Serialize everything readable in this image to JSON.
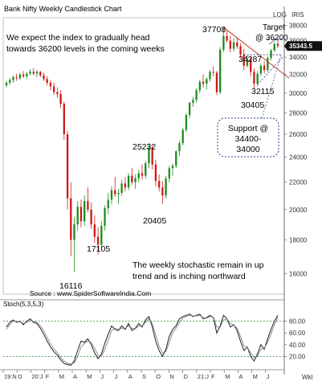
{
  "chart_data": [
    {
      "type": "candlestick",
      "title": "Bank Nifty Weekly Candlestick Chart",
      "scale_label": "LOG",
      "source_label": "IRIS",
      "current_price_tag": "35343.5",
      "ylim": [
        14900,
        39000
      ],
      "y_ticks": [
        16000,
        18000,
        20000,
        22000,
        24000,
        26000,
        28000,
        30000,
        32000,
        34000,
        36000,
        38000
      ],
      "x_tick_labels": [
        "19:N",
        "D",
        "20:J",
        "F",
        "M",
        "A",
        "M",
        "J",
        "J",
        "A",
        "S",
        "O",
        "N",
        "D",
        "21:J",
        "F",
        "M",
        "A",
        "M",
        "J"
      ],
      "x_unit": "Wkl",
      "commentary_top": "We  expect  the  index  to  gradually  head towards 36200 levels in the coming weeks",
      "commentary_bottom": "The  weekly  stochastic  remain  in  up trend and is inching northward",
      "source_text": "Source : www.SpiderSoftwareIndia.Com",
      "annotations": {
        "peak_37708": "37708",
        "target_line1": "Target",
        "target_line2": "@ 36200",
        "level_34287": "34287",
        "level_32115": "32115",
        "level_30405": "30405",
        "support_line1": "Support @",
        "support_line2": "34400-",
        "support_line3": "34000",
        "level_25232": "25232",
        "level_20405": "20405",
        "level_17105": "17105",
        "level_16116": "16116"
      },
      "ohlc": [
        {
          "o": 30800,
          "h": 31300,
          "l": 30600,
          "c": 31100
        },
        {
          "o": 31100,
          "h": 31600,
          "l": 30900,
          "c": 31400
        },
        {
          "o": 31400,
          "h": 31900,
          "l": 31100,
          "c": 31700
        },
        {
          "o": 31700,
          "h": 32100,
          "l": 31300,
          "c": 31600
        },
        {
          "o": 31600,
          "h": 32200,
          "l": 31400,
          "c": 32000
        },
        {
          "o": 32000,
          "h": 32400,
          "l": 31600,
          "c": 31800
        },
        {
          "o": 31800,
          "h": 32300,
          "l": 31500,
          "c": 32100
        },
        {
          "o": 32100,
          "h": 32600,
          "l": 31900,
          "c": 32300
        },
        {
          "o": 32300,
          "h": 32700,
          "l": 31900,
          "c": 32100
        },
        {
          "o": 32100,
          "h": 32500,
          "l": 31700,
          "c": 32300
        },
        {
          "o": 32300,
          "h": 32400,
          "l": 31700,
          "c": 31900
        },
        {
          "o": 31900,
          "h": 32200,
          "l": 31300,
          "c": 31500
        },
        {
          "o": 31500,
          "h": 31800,
          "l": 30800,
          "c": 31100
        },
        {
          "o": 31100,
          "h": 31400,
          "l": 30300,
          "c": 30700
        },
        {
          "o": 30700,
          "h": 31100,
          "l": 29800,
          "c": 30100
        },
        {
          "o": 30100,
          "h": 30600,
          "l": 29500,
          "c": 29900
        },
        {
          "o": 29900,
          "h": 30300,
          "l": 28500,
          "c": 28900
        },
        {
          "o": 28900,
          "h": 29100,
          "l": 25500,
          "c": 26000
        },
        {
          "o": 26000,
          "h": 26300,
          "l": 20000,
          "c": 20800
        },
        {
          "o": 20800,
          "h": 22000,
          "l": 17000,
          "c": 18000
        },
        {
          "o": 18000,
          "h": 19500,
          "l": 16116,
          "c": 19000
        },
        {
          "o": 19000,
          "h": 20600,
          "l": 18600,
          "c": 20200
        },
        {
          "o": 20200,
          "h": 20700,
          "l": 18800,
          "c": 19200
        },
        {
          "o": 19200,
          "h": 21000,
          "l": 18900,
          "c": 20600
        },
        {
          "o": 20600,
          "h": 21600,
          "l": 19800,
          "c": 20000
        },
        {
          "o": 20000,
          "h": 20500,
          "l": 18700,
          "c": 19000
        },
        {
          "o": 19000,
          "h": 19600,
          "l": 17800,
          "c": 18200
        },
        {
          "o": 18200,
          "h": 18800,
          "l": 17105,
          "c": 17700
        },
        {
          "o": 17700,
          "h": 19200,
          "l": 17500,
          "c": 18900
        },
        {
          "o": 18900,
          "h": 20300,
          "l": 18600,
          "c": 20100
        },
        {
          "o": 20100,
          "h": 21200,
          "l": 19700,
          "c": 20700
        },
        {
          "o": 20700,
          "h": 21700,
          "l": 20400,
          "c": 21400
        },
        {
          "o": 21400,
          "h": 22400,
          "l": 20900,
          "c": 21100
        },
        {
          "o": 21100,
          "h": 21500,
          "l": 20400,
          "c": 21200
        },
        {
          "o": 21200,
          "h": 22200,
          "l": 21000,
          "c": 21900
        },
        {
          "o": 21900,
          "h": 22400,
          "l": 21300,
          "c": 21600
        },
        {
          "o": 21600,
          "h": 22700,
          "l": 21400,
          "c": 22500
        },
        {
          "o": 22500,
          "h": 23100,
          "l": 21800,
          "c": 22000
        },
        {
          "o": 22000,
          "h": 22600,
          "l": 21500,
          "c": 22300
        },
        {
          "o": 22300,
          "h": 23000,
          "l": 22000,
          "c": 22700
        },
        {
          "o": 22700,
          "h": 23400,
          "l": 22200,
          "c": 22500
        },
        {
          "o": 22500,
          "h": 23700,
          "l": 22300,
          "c": 23500
        },
        {
          "o": 23500,
          "h": 25232,
          "l": 23100,
          "c": 24800
        },
        {
          "o": 24800,
          "h": 25000,
          "l": 23000,
          "c": 23400
        },
        {
          "o": 23400,
          "h": 23800,
          "l": 21700,
          "c": 22100
        },
        {
          "o": 22100,
          "h": 22600,
          "l": 21300,
          "c": 21600
        },
        {
          "o": 21600,
          "h": 22100,
          "l": 20405,
          "c": 21000
        },
        {
          "o": 21000,
          "h": 22500,
          "l": 20800,
          "c": 22300
        },
        {
          "o": 22300,
          "h": 23300,
          "l": 22000,
          "c": 23100
        },
        {
          "o": 23100,
          "h": 23500,
          "l": 22500,
          "c": 23300
        },
        {
          "o": 23300,
          "h": 24600,
          "l": 23100,
          "c": 24500
        },
        {
          "o": 24500,
          "h": 25400,
          "l": 24100,
          "c": 25200
        },
        {
          "o": 25200,
          "h": 26600,
          "l": 25000,
          "c": 26400
        },
        {
          "o": 26400,
          "h": 28000,
          "l": 26200,
          "c": 27800
        },
        {
          "o": 27800,
          "h": 29100,
          "l": 27500,
          "c": 29000
        },
        {
          "o": 29000,
          "h": 29600,
          "l": 28600,
          "c": 29300
        },
        {
          "o": 29300,
          "h": 30500,
          "l": 29000,
          "c": 30300
        },
        {
          "o": 30300,
          "h": 31400,
          "l": 30000,
          "c": 31200
        },
        {
          "o": 31200,
          "h": 32000,
          "l": 30600,
          "c": 31000
        },
        {
          "o": 31000,
          "h": 31700,
          "l": 30400,
          "c": 31500
        },
        {
          "o": 31500,
          "h": 32500,
          "l": 31200,
          "c": 32300
        },
        {
          "o": 32300,
          "h": 32900,
          "l": 31800,
          "c": 32200
        },
        {
          "o": 32200,
          "h": 32400,
          "l": 29800,
          "c": 30100
        },
        {
          "o": 30100,
          "h": 35200,
          "l": 29900,
          "c": 34900
        },
        {
          "o": 34900,
          "h": 37708,
          "l": 34600,
          "c": 36600
        },
        {
          "o": 36600,
          "h": 37400,
          "l": 35800,
          "c": 36000
        },
        {
          "o": 36000,
          "h": 36600,
          "l": 34600,
          "c": 35000
        },
        {
          "o": 35000,
          "h": 36300,
          "l": 34700,
          "c": 35800
        },
        {
          "o": 35800,
          "h": 36400,
          "l": 35000,
          "c": 35300
        },
        {
          "o": 35300,
          "h": 35700,
          "l": 33900,
          "c": 34300
        },
        {
          "o": 34300,
          "h": 35000,
          "l": 32500,
          "c": 33000
        },
        {
          "o": 33000,
          "h": 34200,
          "l": 32800,
          "c": 33800
        },
        {
          "o": 33800,
          "h": 34100,
          "l": 31800,
          "c": 32300
        },
        {
          "o": 32300,
          "h": 32700,
          "l": 30405,
          "c": 31000
        },
        {
          "o": 31000,
          "h": 32400,
          "l": 30700,
          "c": 32100
        },
        {
          "o": 32100,
          "h": 33300,
          "l": 31800,
          "c": 33000
        },
        {
          "o": 33000,
          "h": 33500,
          "l": 32115,
          "c": 32500
        },
        {
          "o": 32500,
          "h": 34100,
          "l": 32300,
          "c": 33900
        },
        {
          "o": 33900,
          "h": 35000,
          "l": 33600,
          "c": 34800
        },
        {
          "o": 34800,
          "h": 35800,
          "l": 34600,
          "c": 35600
        },
        {
          "o": 35600,
          "h": 36100,
          "l": 35100,
          "c": 35343.5
        }
      ]
    },
    {
      "type": "line",
      "title": "Stoch(5,3,5,3)",
      "ylim": [
        0,
        100
      ],
      "y_ticks": [
        20,
        40,
        60,
        80
      ],
      "reference_lines": [
        20,
        80
      ],
      "series": [
        {
          "values": [
            70,
            78,
            82,
            78,
            80,
            74,
            80,
            84,
            78,
            76,
            68,
            58,
            46,
            36,
            28,
            22,
            14,
            8,
            6,
            5,
            12,
            30,
            46,
            44,
            50,
            40,
            26,
            16,
            24,
            42,
            58,
            72,
            66,
            64,
            72,
            66,
            76,
            64,
            68,
            76,
            70,
            82,
            88,
            70,
            46,
            30,
            20,
            32,
            54,
            66,
            72,
            84,
            88,
            90,
            92,
            88,
            90,
            92,
            84,
            86,
            90,
            86,
            60,
            72,
            90,
            84,
            70,
            74,
            64,
            46,
            30,
            36,
            20,
            12,
            24,
            40,
            32,
            50,
            66,
            80,
            90
          ]
        },
        {
          "values": [
            66,
            74,
            80,
            79,
            79,
            76,
            78,
            81,
            80,
            78,
            72,
            64,
            52,
            42,
            33,
            26,
            18,
            12,
            8,
            7,
            9,
            20,
            36,
            42,
            46,
            44,
            34,
            22,
            20,
            32,
            48,
            64,
            68,
            66,
            68,
            68,
            72,
            68,
            67,
            72,
            72,
            78,
            84,
            76,
            56,
            38,
            26,
            28,
            44,
            60,
            68,
            78,
            85,
            88,
            90,
            89,
            89,
            90,
            86,
            85,
            88,
            87,
            70,
            70,
            82,
            84,
            76,
            73,
            68,
            54,
            38,
            35,
            26,
            18,
            20,
            32,
            34,
            44,
            58,
            74,
            86
          ]
        }
      ]
    }
  ]
}
